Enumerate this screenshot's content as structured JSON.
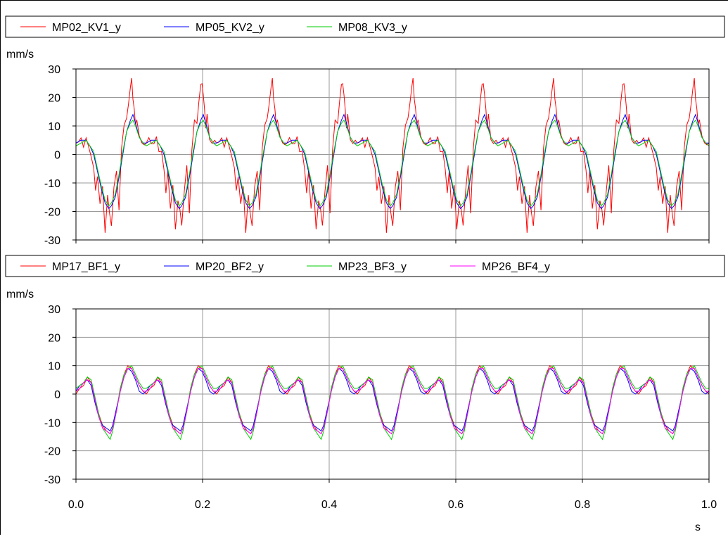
{
  "chart_data": [
    {
      "type": "line",
      "ylabel": "mm/s",
      "xlabel": "",
      "xlim": [
        0,
        1
      ],
      "ylim": [
        -30,
        30
      ],
      "yticks": [
        "30",
        "20",
        "10",
        "0",
        "-10",
        "-20",
        "-30"
      ],
      "grid": true,
      "legend_position": "top",
      "period_s": 0.1111,
      "series": [
        {
          "name": "MP02_KV1_y",
          "color": "#ff0000",
          "x": [
            0,
            0.004,
            0.008,
            0.012,
            0.016,
            0.02,
            0.024,
            0.028,
            0.031,
            0.034,
            0.038,
            0.042,
            0.046,
            0.05,
            0.053,
            0.056,
            0.06,
            0.064,
            0.068,
            0.072,
            0.076,
            0.08,
            0.083,
            0.086,
            0.088,
            0.09,
            0.092,
            0.094,
            0.096,
            0.1,
            0.104,
            0.108
          ],
          "y": [
            4,
            5,
            5,
            3,
            6,
            2,
            0,
            -5,
            -13,
            -7,
            -18,
            -11,
            -27,
            -15,
            -20,
            -25,
            -12,
            -5,
            -20,
            2,
            11,
            12,
            18,
            24,
            26,
            20,
            16,
            10,
            13,
            6,
            4,
            4
          ]
        },
        {
          "name": "MP05_KV2_y",
          "color": "#0000ff",
          "x": [
            0,
            0.008,
            0.016,
            0.022,
            0.028,
            0.034,
            0.04,
            0.046,
            0.052,
            0.056,
            0.062,
            0.068,
            0.074,
            0.08,
            0.086,
            0.09,
            0.094,
            0.1,
            0.106
          ],
          "y": [
            4,
            5,
            5,
            3,
            0,
            -6,
            -12,
            -17,
            -19,
            -18,
            -15,
            -8,
            0,
            8,
            12,
            14,
            11,
            6,
            4
          ]
        },
        {
          "name": "MP08_KV3_y",
          "color": "#00cc00",
          "x": [
            0,
            0.008,
            0.016,
            0.022,
            0.028,
            0.034,
            0.04,
            0.046,
            0.052,
            0.056,
            0.062,
            0.068,
            0.074,
            0.08,
            0.086,
            0.09,
            0.094,
            0.1,
            0.106
          ],
          "y": [
            3,
            4,
            5,
            3,
            1,
            -5,
            -11,
            -16,
            -18,
            -17,
            -14,
            -7,
            1,
            8,
            11,
            12,
            10,
            6,
            4
          ]
        }
      ]
    },
    {
      "type": "line",
      "ylabel": "mm/s",
      "xlabel": "s",
      "xlim": [
        0,
        1
      ],
      "ylim": [
        -30,
        30
      ],
      "yticks": [
        "30",
        "20",
        "10",
        "0",
        "-10",
        "-20",
        "-30"
      ],
      "xticks": [
        "0.0",
        "0.2",
        "0.4",
        "0.6",
        "0.8",
        "1.0"
      ],
      "grid": true,
      "legend_position": "top",
      "period_s": 0.1111,
      "series": [
        {
          "name": "MP17_BF1_y",
          "color": "#ff0000",
          "x": [
            0,
            0.006,
            0.012,
            0.018,
            0.024,
            0.03,
            0.036,
            0.042,
            0.048,
            0.054,
            0.058,
            0.064,
            0.07,
            0.076,
            0.082,
            0.088,
            0.094,
            0.1,
            0.106
          ],
          "y": [
            0,
            2,
            3,
            6,
            4,
            -2,
            -7,
            -11,
            -13,
            -14,
            -12,
            -6,
            2,
            7,
            10,
            9,
            6,
            3,
            1
          ]
        },
        {
          "name": "MP20_BF2_y",
          "color": "#0000ff",
          "x": [
            0,
            0.006,
            0.012,
            0.018,
            0.024,
            0.03,
            0.036,
            0.042,
            0.048,
            0.054,
            0.058,
            0.064,
            0.07,
            0.076,
            0.082,
            0.088,
            0.094,
            0.1,
            0.106
          ],
          "y": [
            1,
            3,
            4,
            5,
            3,
            -3,
            -8,
            -11,
            -12,
            -13,
            -11,
            -5,
            1,
            6,
            9,
            8,
            5,
            1,
            0
          ]
        },
        {
          "name": "MP23_BF3_y",
          "color": "#00cc00",
          "x": [
            0,
            0.006,
            0.012,
            0.018,
            0.024,
            0.03,
            0.036,
            0.042,
            0.048,
            0.054,
            0.058,
            0.064,
            0.07,
            0.076,
            0.082,
            0.088,
            0.094,
            0.1,
            0.106
          ],
          "y": [
            2,
            3,
            4,
            6,
            5,
            -1,
            -7,
            -12,
            -14,
            -16,
            -13,
            -6,
            2,
            7,
            9,
            10,
            7,
            4,
            2
          ]
        },
        {
          "name": "MP26_BF4_y",
          "color": "#ff00ff",
          "x": [
            0,
            0.006,
            0.012,
            0.018,
            0.024,
            0.03,
            0.036,
            0.042,
            0.048,
            0.054,
            0.058,
            0.064,
            0.07,
            0.076,
            0.082,
            0.088,
            0.094,
            0.1,
            0.106
          ],
          "y": [
            1,
            2,
            4,
            5,
            4,
            -2,
            -8,
            -12,
            -13,
            -14,
            -12,
            -6,
            1,
            6,
            9,
            9,
            6,
            3,
            1
          ]
        }
      ]
    }
  ]
}
